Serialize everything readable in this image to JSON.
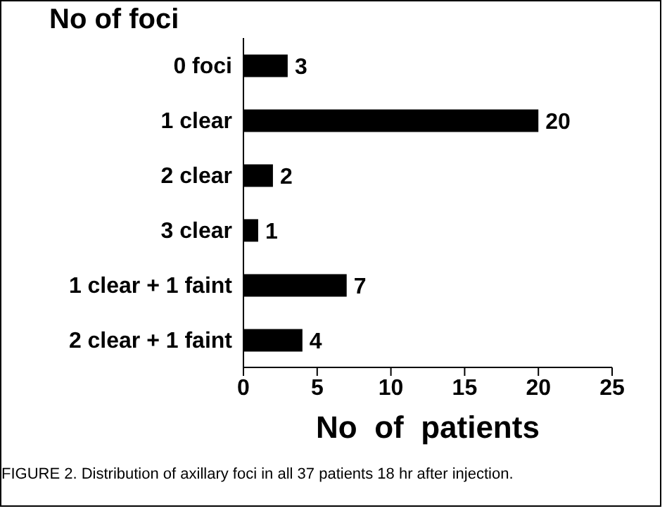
{
  "chart_data": {
    "type": "bar",
    "orientation": "horizontal",
    "ylabel": "No of foci",
    "xlabel": "No  of  patients",
    "categories": [
      "0 foci",
      "1 clear",
      "2 clear",
      "3 clear",
      "1 clear + 1 faint",
      "2 clear + 1 faint"
    ],
    "values": [
      3,
      20,
      2,
      1,
      7,
      4
    ],
    "color": "#000000",
    "data_labels": true,
    "xlim": [
      0,
      25
    ],
    "xticks": [
      0,
      5,
      10,
      15,
      20,
      25
    ],
    "grid": false,
    "annotations": [
      "FIGURE 2. Distribution of axillary foci in all 37 patients 18 hr after injection."
    ]
  }
}
